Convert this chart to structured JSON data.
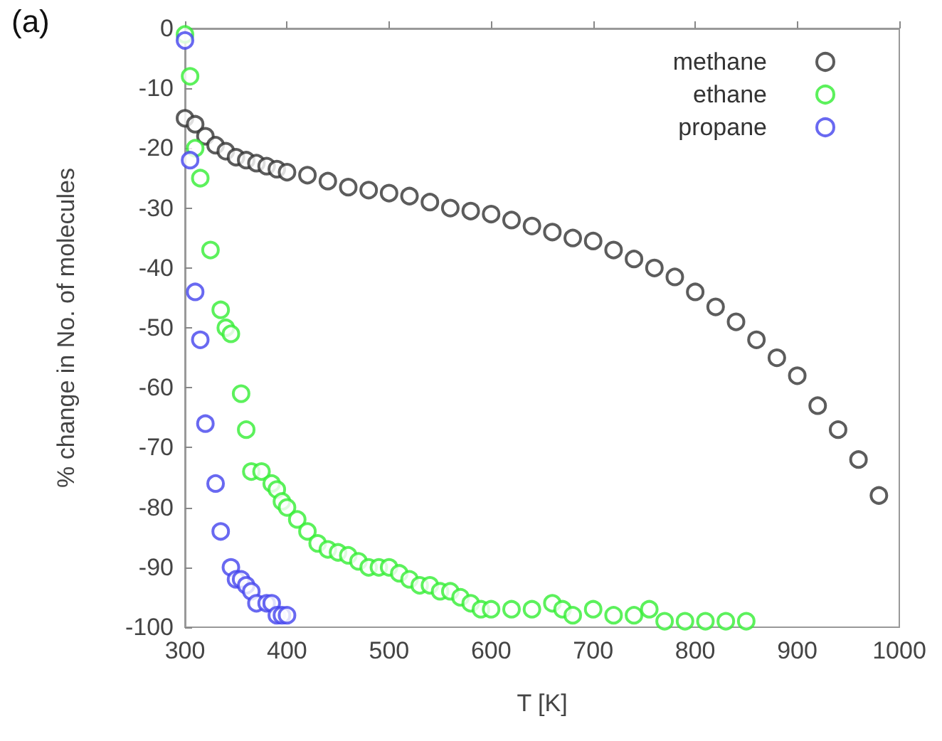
{
  "chart_data": {
    "type": "scatter",
    "xlabel": "T [K]",
    "ylabel": "% change in No. of molecules",
    "annotations": [
      "(a)"
    ],
    "xlim": [
      300,
      1000
    ],
    "xticks": [
      300,
      400,
      500,
      600,
      700,
      800,
      900,
      1000
    ],
    "ylim": [
      -100,
      0
    ],
    "yticks": [
      -100,
      -90,
      -80,
      -70,
      -60,
      -50,
      -40,
      -30,
      -20,
      -10,
      0
    ],
    "grid": false,
    "legend": "top right",
    "marker": "circle",
    "series": [
      {
        "name": "methane",
        "color": "#333333",
        "x": [
          300,
          310,
          320,
          330,
          340,
          350,
          360,
          370,
          380,
          390,
          400,
          420,
          440,
          460,
          480,
          500,
          520,
          540,
          560,
          580,
          600,
          620,
          640,
          660,
          680,
          700,
          720,
          740,
          760,
          780,
          800,
          820,
          840,
          860,
          880,
          900,
          920,
          940,
          960,
          980
        ],
        "values": [
          -15,
          -16,
          -18,
          -19.5,
          -20.5,
          -21.5,
          -22,
          -22.5,
          -23,
          -23.5,
          -24,
          -24.5,
          -25.5,
          -26.5,
          -27,
          -27.5,
          -28,
          -29,
          -30,
          -30.5,
          -31,
          -32,
          -33,
          -34,
          -35,
          -35.5,
          -37,
          -38.5,
          -40,
          -41.5,
          -44,
          -46.5,
          -49,
          -52,
          -55,
          -58,
          -63,
          -67,
          -72,
          -78
        ]
      },
      {
        "name": "ethane",
        "color": "#33ee33",
        "x": [
          300,
          305,
          310,
          315,
          325,
          335,
          340,
          345,
          355,
          360,
          365,
          375,
          385,
          390,
          395,
          400,
          410,
          420,
          430,
          440,
          450,
          460,
          470,
          480,
          490,
          500,
          510,
          520,
          530,
          540,
          550,
          560,
          570,
          580,
          590,
          600,
          620,
          640,
          660,
          670,
          680,
          700,
          720,
          740,
          755,
          770,
          790,
          810,
          830,
          850
        ],
        "values": [
          -1,
          -8,
          -20,
          -25,
          -37,
          -47,
          -50,
          -51,
          -61,
          -67,
          -74,
          -74,
          -76,
          -77,
          -79,
          -80,
          -82,
          -84,
          -86,
          -87,
          -87.5,
          -88,
          -89,
          -90,
          -90,
          -90,
          -91,
          -92,
          -93,
          -93,
          -94,
          -94,
          -95,
          -96,
          -97,
          -97,
          -97,
          -97,
          -96,
          -97,
          -98,
          -97,
          -98,
          -98,
          -97,
          -99,
          -99,
          -99,
          -99,
          -99
        ]
      },
      {
        "name": "propane",
        "color": "#4444ee",
        "x": [
          300,
          305,
          310,
          315,
          320,
          330,
          335,
          345,
          350,
          355,
          360,
          365,
          370,
          380,
          385,
          390,
          395,
          400
        ],
        "values": [
          -2,
          -22,
          -44,
          -52,
          -66,
          -76,
          -84,
          -90,
          -92,
          -92,
          -93,
          -94,
          -96,
          -96,
          -96,
          -98,
          -98,
          -98
        ]
      }
    ]
  }
}
